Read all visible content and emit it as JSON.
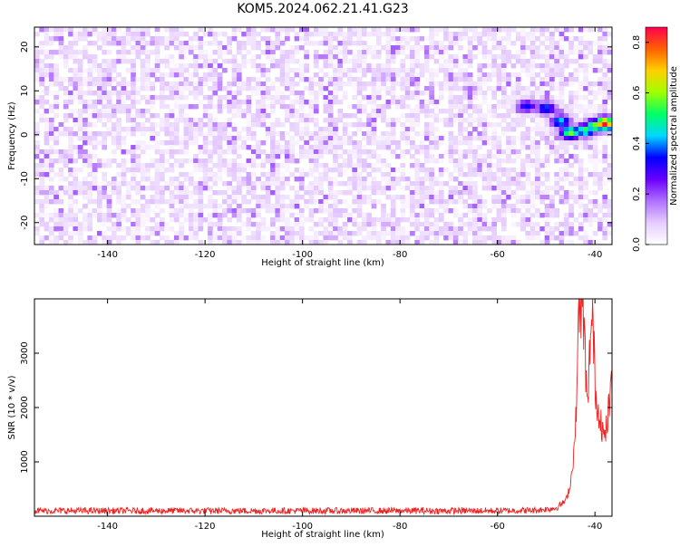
{
  "title": "KOM5.2024.062.21.41.G23",
  "chart_data": [
    {
      "type": "heatmap",
      "xlabel": "Height of straight line (km)",
      "ylabel": "Frequency (Hz)",
      "xlim": [
        -155,
        -36.5
      ],
      "ylim": [
        -25,
        24.5
      ],
      "xticks": [
        -140,
        -120,
        -100,
        -80,
        -60,
        -40
      ],
      "yticks": [
        -20,
        -10,
        0,
        10,
        20
      ],
      "colorbar": {
        "label": "Normalized spectral amplitude",
        "range": [
          0,
          0.86
        ],
        "ticks": [
          0.0,
          0.2,
          0.4,
          0.6,
          0.8
        ],
        "colormap": [
          "#ffffff",
          "#e6ccff",
          "#b070ff",
          "#6a00ff",
          "#0000ff",
          "#00d8ff",
          "#00ff66",
          "#a0ff00",
          "#ffd000",
          "#ff6000",
          "#ff0050"
        ]
      },
      "strong_feature": {
        "description_points": [
          {
            "x": -54,
            "y": 6.5,
            "v": 0.35
          },
          {
            "x": -50,
            "y": 6.0,
            "v": 0.4
          },
          {
            "x": -47,
            "y": 3.0,
            "v": 0.45
          },
          {
            "x": -45,
            "y": 0.5,
            "v": 0.6
          },
          {
            "x": -42,
            "y": 1.0,
            "v": 0.55
          },
          {
            "x": -40,
            "y": 2.0,
            "v": 0.6
          },
          {
            "x": -38,
            "y": 2.5,
            "v": 0.86
          }
        ]
      }
    },
    {
      "type": "line",
      "xlabel": "Height of straight line (km)",
      "ylabel": "SNR (10 * v/v)",
      "xlim": [
        -155,
        -36.5
      ],
      "ylim": [
        0,
        4000
      ],
      "xticks": [
        -140,
        -120,
        -100,
        -80,
        -60,
        -40
      ],
      "yticks": [
        1000,
        2000,
        3000
      ],
      "color": "#ee2222",
      "x": [
        -155,
        -140,
        -120,
        -100,
        -80,
        -60,
        -52,
        -48,
        -46,
        -45,
        -44,
        -43.5,
        -43,
        -42.5,
        -42,
        -41.5,
        -41,
        -40.5,
        -40,
        -39.5,
        -39,
        -38.5,
        -38,
        -37.5,
        -37,
        -36.5
      ],
      "y": [
        100,
        100,
        100,
        100,
        100,
        100,
        110,
        150,
        280,
        600,
        1500,
        3200,
        4000,
        3800,
        3000,
        1800,
        3300,
        3600,
        2600,
        1900,
        2000,
        1600,
        1400,
        1700,
        2100,
        2400
      ]
    }
  ]
}
